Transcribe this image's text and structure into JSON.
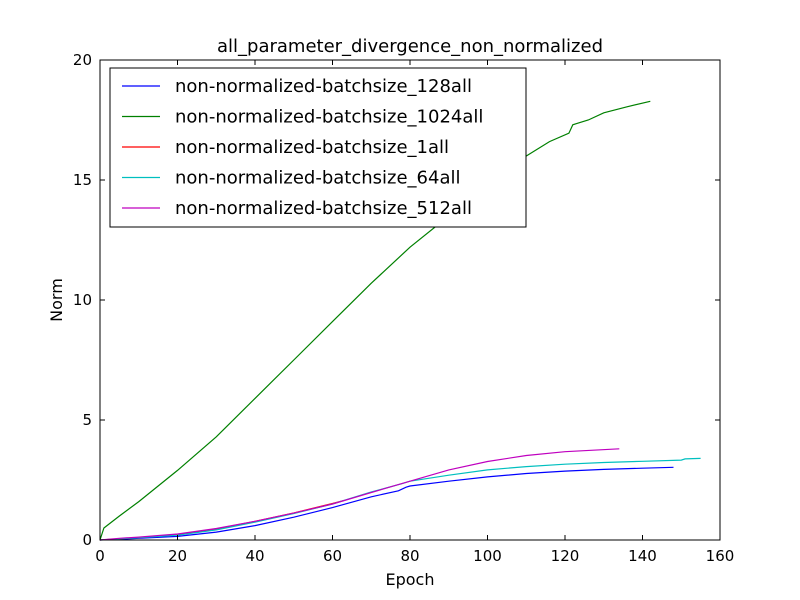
{
  "chart_data": {
    "type": "line",
    "title": "all_parameter_divergence_non_normalized",
    "xlabel": "Epoch",
    "ylabel": "Norm",
    "xlim": [
      0,
      160
    ],
    "ylim": [
      0,
      20
    ],
    "xticks": [
      "0",
      "20",
      "40",
      "60",
      "80",
      "100",
      "120",
      "140",
      "160"
    ],
    "yticks": [
      "0",
      "5",
      "10",
      "15",
      "20"
    ],
    "grid": false,
    "legend_position": "upper-left",
    "series": [
      {
        "name": "non-normalized-batchsize_128all",
        "color": "#0000ff",
        "x": [
          0,
          5,
          10,
          20,
          30,
          40,
          50,
          60,
          70,
          77,
          79,
          80,
          90,
          100,
          110,
          120,
          130,
          140,
          148
        ],
        "y": [
          0,
          0.03,
          0.07,
          0.15,
          0.33,
          0.6,
          0.95,
          1.35,
          1.8,
          2.05,
          2.2,
          2.25,
          2.45,
          2.63,
          2.77,
          2.87,
          2.94,
          2.99,
          3.03
        ]
      },
      {
        "name": "non-normalized-batchsize_1024all",
        "color": "#008000",
        "x": [
          0,
          1,
          5,
          10,
          20,
          30,
          40,
          50,
          60,
          70,
          80,
          90,
          100,
          110,
          116,
          121,
          122,
          123,
          126,
          130,
          136,
          142
        ],
        "y": [
          0,
          0.5,
          1.0,
          1.6,
          2.9,
          4.3,
          5.9,
          7.5,
          9.1,
          10.7,
          12.2,
          13.5,
          14.9,
          16.0,
          16.6,
          16.95,
          17.3,
          17.35,
          17.5,
          17.8,
          18.05,
          18.28
        ]
      },
      {
        "name": "non-normalized-batchsize_1all",
        "color": "#ff0000",
        "x": [
          0,
          5,
          10,
          20,
          30,
          40,
          50,
          60,
          63
        ],
        "y": [
          0,
          0.05,
          0.1,
          0.23,
          0.46,
          0.78,
          1.13,
          1.52,
          1.65
        ]
      },
      {
        "name": "non-normalized-batchsize_64all",
        "color": "#00bfbf",
        "x": [
          0,
          5,
          10,
          20,
          30,
          40,
          50,
          60,
          70,
          78,
          80,
          90,
          100,
          110,
          120,
          130,
          140,
          150,
          151,
          155
        ],
        "y": [
          0,
          0.05,
          0.1,
          0.2,
          0.42,
          0.74,
          1.1,
          1.5,
          2.0,
          2.35,
          2.45,
          2.7,
          2.92,
          3.06,
          3.16,
          3.23,
          3.28,
          3.33,
          3.38,
          3.4
        ]
      },
      {
        "name": "non-normalized-batchsize_512all",
        "color": "#bf00bf",
        "x": [
          0,
          5,
          10,
          20,
          30,
          40,
          50,
          60,
          70,
          80,
          90,
          100,
          110,
          120,
          134
        ],
        "y": [
          0,
          0.07,
          0.12,
          0.25,
          0.48,
          0.78,
          1.12,
          1.5,
          1.98,
          2.45,
          2.92,
          3.27,
          3.52,
          3.68,
          3.8
        ]
      }
    ]
  }
}
